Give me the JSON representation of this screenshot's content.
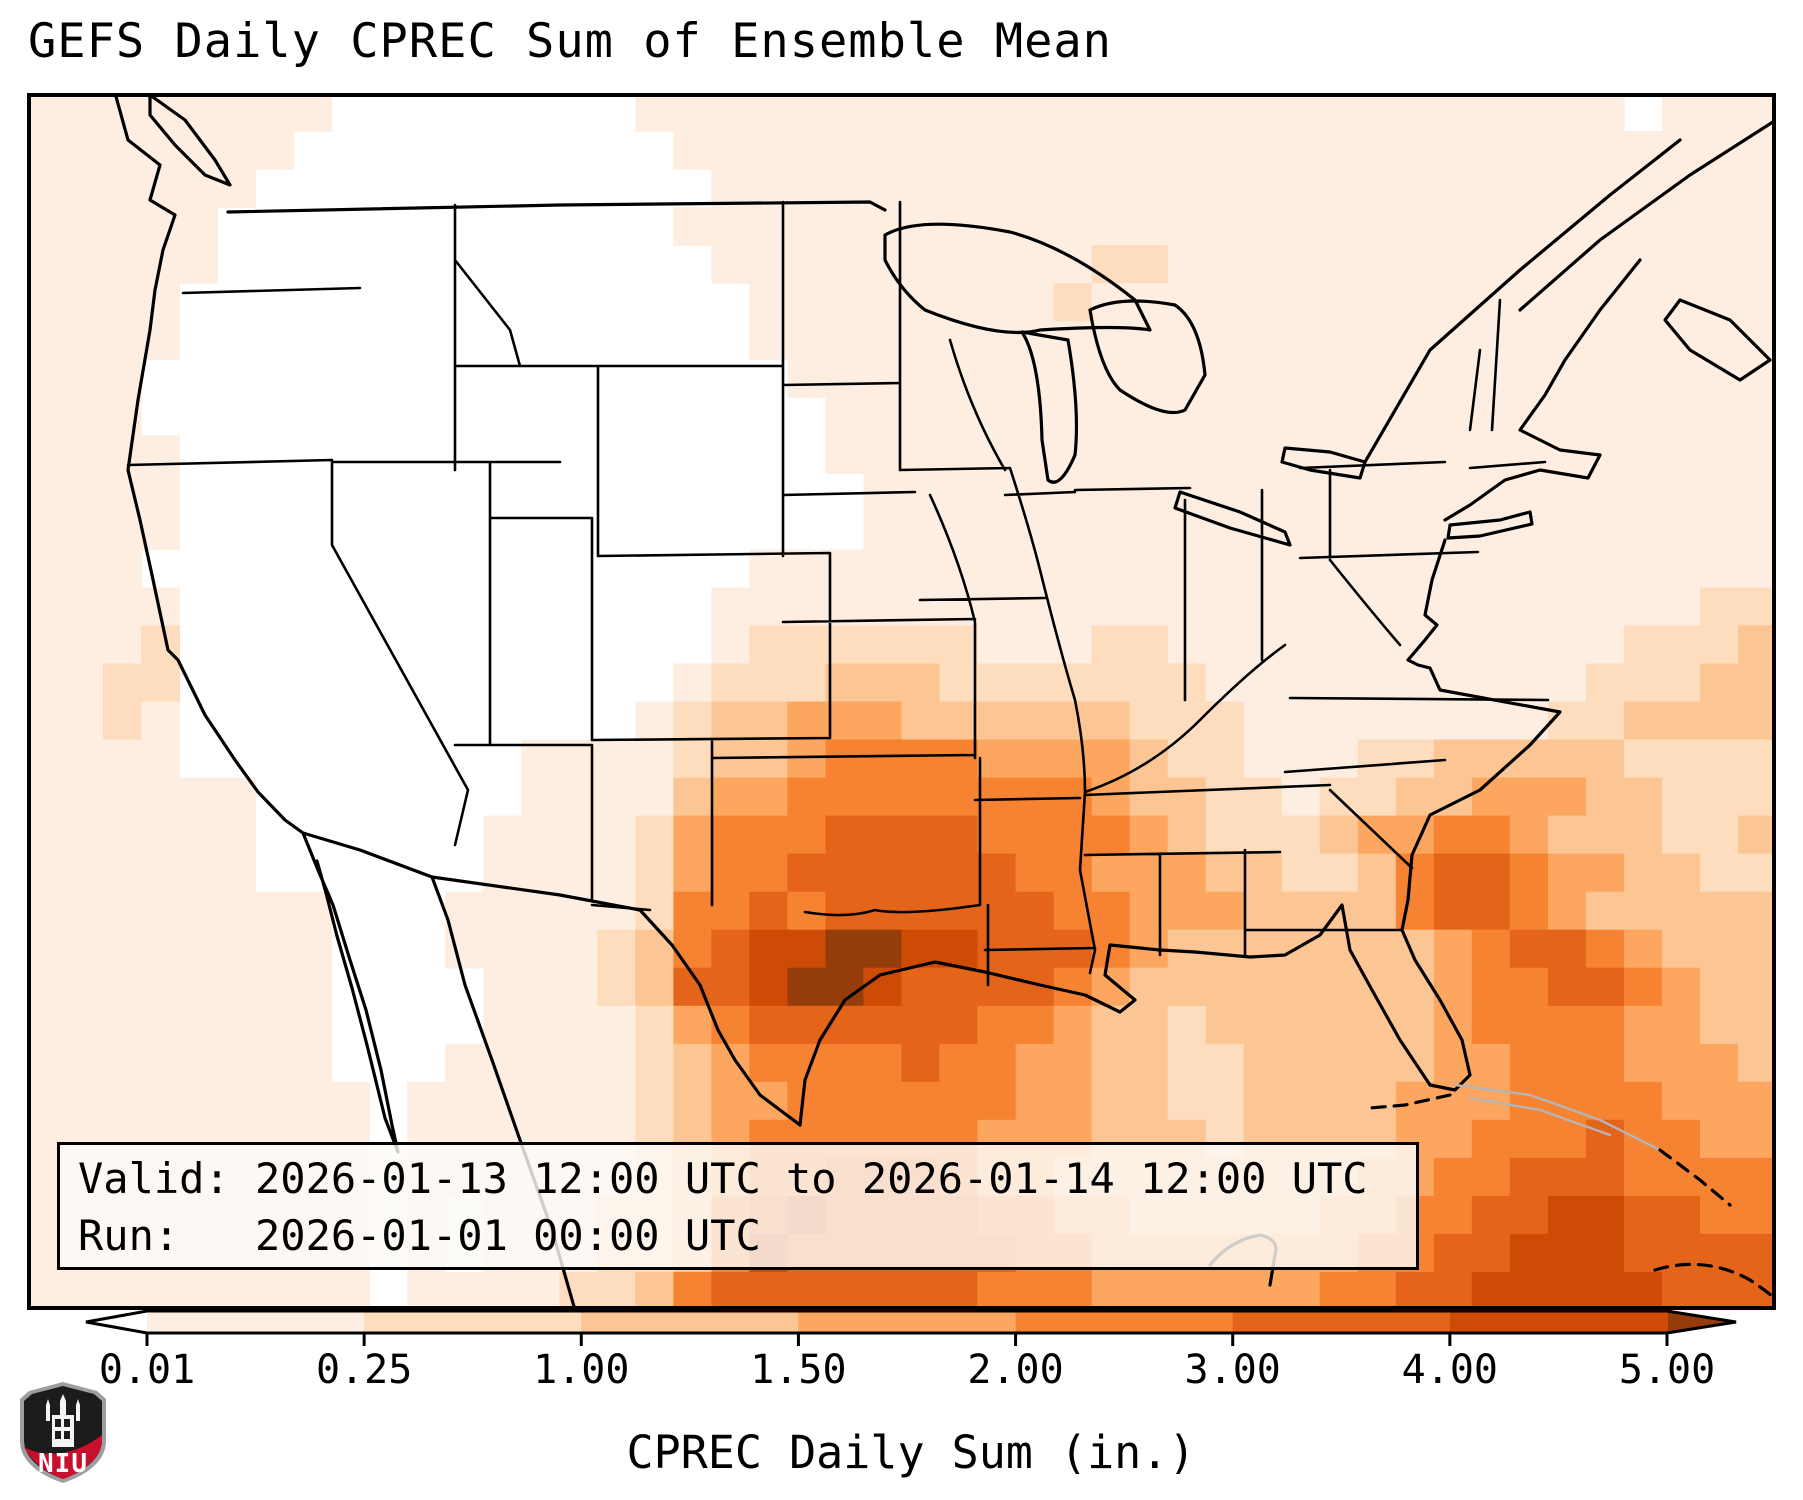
{
  "title": "GEFS Daily CPREC Sum of Ensemble Mean",
  "info_box": {
    "valid_line": "Valid: 2026-01-13 12:00 UTC to 2026-01-14 12:00 UTC",
    "run_line": "Run:   2026-01-01 00:00 UTC"
  },
  "colorbar": {
    "label": "CPREC Daily Sum (in.)",
    "tick_labels": [
      "0.01",
      "0.25",
      "1.00",
      "1.50",
      "2.00",
      "3.00",
      "4.00",
      "5.00"
    ],
    "under_color": "#ffffff",
    "over_color": "#953c0b",
    "bin_colors": [
      "#fdeee1",
      "#fdddbe",
      "#fcc694",
      "#fda65f",
      "#f58331",
      "#e4641a",
      "#ce4b06"
    ],
    "outline_color": "#000000"
  },
  "logo": {
    "text": "NIU",
    "shield_color": "#1c1c1c",
    "band_color": "#c8102e",
    "border_color": "#9b9fa1"
  },
  "chart_data": {
    "type": "heatmap",
    "title": "GEFS Daily CPREC Sum of Ensemble Mean",
    "units": "inches",
    "colorbar_label": "CPREC Daily Sum (in.)",
    "valid": "2026-01-13 12:00 UTC to 2026-01-14 12:00 UTC",
    "run": "2026-01-01 00:00 UTC",
    "boundaries_in": [
      0.01,
      0.25,
      1.0,
      1.5,
      2.0,
      3.0,
      4.0,
      5.0
    ],
    "bins": [
      {
        "index": 0,
        "range": "< 0.01",
        "color": "#ffffff"
      },
      {
        "index": 1,
        "range": "0.01-0.25",
        "color": "#fdeee1"
      },
      {
        "index": 2,
        "range": "0.25-1.00",
        "color": "#fdddbe"
      },
      {
        "index": 3,
        "range": "1.00-1.50",
        "color": "#fcc694"
      },
      {
        "index": 4,
        "range": "1.50-2.00",
        "color": "#fda65f"
      },
      {
        "index": 5,
        "range": "2.00-3.00",
        "color": "#f58331"
      },
      {
        "index": 6,
        "range": "3.00-4.00",
        "color": "#e4641a"
      },
      {
        "index": 7,
        "range": "4.00-5.00",
        "color": "#ce4b06"
      },
      {
        "index": 8,
        "range": "> 5.00",
        "color": "#953c0b"
      }
    ],
    "grid_bin_indices": {
      "ncols": 46,
      "nrows": 32,
      "note": "Each character is the color-bin index of one map cell, row 0 = north (map top), col 0 = west. Maximum >5 in. south of Louisiana over the Gulf; secondary maximum offshore of the Southeast US coast and over Cuba.",
      "rows": [
        "1111111100000000111111111111111111111111110111",
        "1111111000000000011111111111111111111111111111",
        "1111110000000000001111111111111111111111111111",
        "1111100000000000011111111111111111111111111111",
        "1111100000000000001111111111221111111111111111",
        "1111000000000000000111111112111111111111111111",
        "1111000000000000000111111111111111111111111111",
        "1110000000000000000011111111111111111111111111",
        "1110000000000000000001111111111111111111111111",
        "1111000000000000000001111111111111111111111111",
        "1111000000000000000000111111111111111111111111",
        "1111000000000000000000111111111111111111111111",
        "1110000000000000000111111111111111111111111111",
        "1111000000000000001111111111111111111111111122",
        "1112000000000000001222222111221111111111112223",
        "1122000000000000012223332222222111111111122233",
        "1121000000000000123344433333322211111111223333",
        "1111000000000111123345555444432211122333332222",
        "1111110000000111134455555555433221223344433222",
        "1111110000001111245556666555543222344554333223",
        "1111110000001111245566666655444332235665443322",
        "1111111100011111255656666665544433335665433333",
        "1111111100011112356778877666543333333456654333",
        "1111111100001112366788766665433333333455665433",
        "1111111100001111245666666554332333333455554433",
        "1111111100011111234555565544332233333445554443",
        "1111111110111111234455555544332233334445555444",
        "1111111110111111234555555444333233334455565544",
        "1111111110111111234556665443333333344556665555",
        "1111111110101112235676666554433333445566776655",
        "1111111110101112235766666655444444455667776666",
        "1111111110111122356666666555444444556677777666"
      ]
    }
  }
}
